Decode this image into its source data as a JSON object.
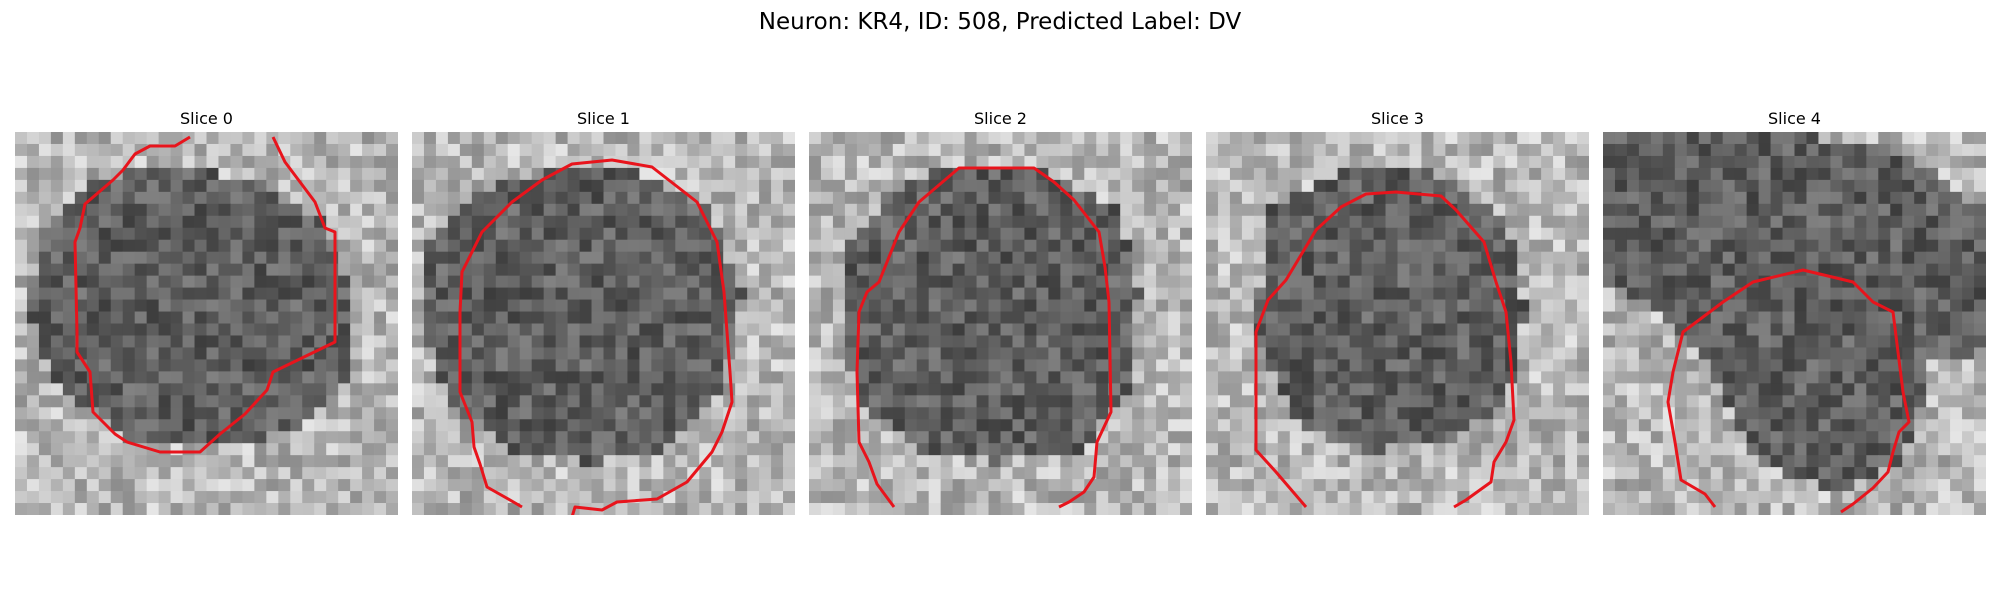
{
  "figure": {
    "suptitle": "Neuron: KR4, ID: 508, Predicted Label: DV"
  },
  "panels": [
    {
      "title": "Slice 0"
    },
    {
      "title": "Slice 1"
    },
    {
      "title": "Slice 2"
    },
    {
      "title": "Slice 3"
    },
    {
      "title": "Slice 4"
    }
  ],
  "contour_color": "#e8141c",
  "colormap": "grayscale"
}
